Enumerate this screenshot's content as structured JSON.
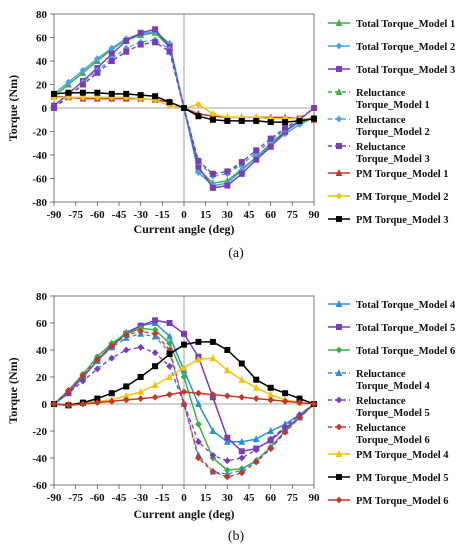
{
  "chart_data": [
    {
      "type": "line",
      "panel_label": "(a)",
      "xlabel": "Current angle (deg)",
      "ylabel": "Torque (Nm)",
      "xlim": [
        -90,
        90
      ],
      "ylim": [
        -80,
        80
      ],
      "x_ticks": [
        -90,
        -75,
        -60,
        -45,
        -30,
        -15,
        0,
        15,
        30,
        45,
        60,
        75,
        90
      ],
      "y_ticks": [
        -80,
        -60,
        -40,
        -20,
        0,
        20,
        40,
        60,
        80
      ],
      "grid": false,
      "legend_position": "right",
      "x": [
        -90,
        -80,
        -70,
        -60,
        -50,
        -40,
        -30,
        -20,
        -10,
        0,
        10,
        20,
        30,
        40,
        50,
        60,
        70,
        80,
        90
      ],
      "series": [
        {
          "name": "Total Torque_Model 1",
          "color": "#3fae49",
          "marker": "triangle",
          "dash": "solid",
          "values": [
            10,
            20,
            30,
            40,
            50,
            58,
            62,
            64,
            52,
            0,
            -52,
            -64,
            -62,
            -52,
            -42,
            -30,
            -20,
            -12,
            -8
          ]
        },
        {
          "name": "Total Torque_Model 2",
          "color": "#4aa3df",
          "marker": "diamond",
          "dash": "solid",
          "values": [
            12,
            22,
            32,
            42,
            51,
            59,
            63,
            65,
            55,
            0,
            -55,
            -66,
            -64,
            -53,
            -42,
            -32,
            -22,
            -14,
            -8
          ]
        },
        {
          "name": "Total Torque_Model 3",
          "color": "#7a3db8",
          "marker": "square",
          "dash": "solid",
          "values": [
            2,
            12,
            23,
            34,
            46,
            57,
            64,
            67,
            52,
            0,
            -50,
            -68,
            -66,
            -56,
            -44,
            -33,
            -20,
            -10,
            0
          ]
        },
        {
          "name": "Reluctance Torque_Model 1",
          "color": "#3fae49",
          "marker": "triangle",
          "dash": "dashed",
          "values": [
            0,
            10,
            20,
            30,
            40,
            48,
            54,
            56,
            48,
            0,
            -45,
            -56,
            -54,
            -48,
            -38,
            -28,
            -18,
            -10,
            0
          ]
        },
        {
          "name": "Reluctance Torque_Model 2",
          "color": "#4aa3df",
          "marker": "diamond",
          "dash": "dashed",
          "values": [
            0,
            12,
            22,
            32,
            42,
            51,
            56,
            58,
            50,
            0,
            -46,
            -58,
            -56,
            -48,
            -38,
            -28,
            -18,
            -10,
            0
          ]
        },
        {
          "name": "Reluctance Torque_Model 3",
          "color": "#7a3db8",
          "marker": "square",
          "dash": "dashed",
          "values": [
            0,
            10,
            20,
            30,
            40,
            48,
            54,
            56,
            48,
            0,
            -45,
            -56,
            -54,
            -46,
            -36,
            -26,
            -17,
            -9,
            0
          ]
        },
        {
          "name": "PM Torque_Model 1",
          "color": "#c0392b",
          "marker": "triangle",
          "dash": "solid",
          "values": [
            10,
            9,
            8,
            8,
            8,
            8,
            8,
            7,
            5,
            0,
            -5,
            -7,
            -8,
            -8,
            -8,
            -8,
            -8,
            -9,
            -10
          ]
        },
        {
          "name": "PM Torque_Model 2",
          "color": "#f1c40f",
          "marker": "diamond",
          "dash": "solid",
          "values": [
            9,
            9,
            9,
            9,
            9,
            9,
            8,
            7,
            2,
            0,
            3,
            -5,
            -8,
            -8,
            -8,
            -9,
            -9,
            -9,
            -9
          ]
        },
        {
          "name": "PM Torque_Model 3",
          "color": "#000000",
          "marker": "square",
          "dash": "solid",
          "values": [
            12,
            13,
            13,
            13,
            12,
            12,
            11,
            10,
            5,
            0,
            -7,
            -10,
            -11,
            -11,
            -11,
            -12,
            -12,
            -11,
            -9
          ]
        }
      ]
    },
    {
      "type": "line",
      "panel_label": "(b)",
      "xlabel": "Current angle (deg)",
      "ylabel": "Torque (Nm)",
      "xlim": [
        -90,
        90
      ],
      "ylim": [
        -60,
        80
      ],
      "x_ticks": [
        -90,
        -75,
        -60,
        -45,
        -30,
        -15,
        0,
        15,
        30,
        45,
        60,
        75,
        90
      ],
      "y_ticks": [
        -60,
        -40,
        -20,
        0,
        20,
        40,
        60,
        80
      ],
      "grid": false,
      "legend_position": "right",
      "x": [
        -90,
        -80,
        -70,
        -60,
        -50,
        -40,
        -30,
        -20,
        -10,
        0,
        10,
        20,
        30,
        40,
        50,
        60,
        70,
        80,
        90
      ],
      "series": [
        {
          "name": "Total Torque_Model 4",
          "color": "#2b8fd6",
          "marker": "triangle",
          "dash": "solid",
          "values": [
            0,
            10,
            20,
            32,
            44,
            53,
            58,
            60,
            50,
            25,
            0,
            -20,
            -28,
            -28,
            -26,
            -20,
            -15,
            -8,
            0
          ]
        },
        {
          "name": "Total Torque_Model 5",
          "color": "#7a3db8",
          "marker": "square",
          "dash": "solid",
          "values": [
            0,
            8,
            20,
            32,
            43,
            52,
            58,
            62,
            60,
            52,
            35,
            5,
            -25,
            -35,
            -33,
            -27,
            -18,
            -10,
            0
          ]
        },
        {
          "name": "Total Torque_Model 6",
          "color": "#3fae49",
          "marker": "diamond",
          "dash": "solid",
          "values": [
            0,
            10,
            22,
            35,
            45,
            52,
            56,
            55,
            45,
            20,
            -15,
            -40,
            -49,
            -48,
            -42,
            -32,
            -20,
            -10,
            0
          ]
        },
        {
          "name": "Reluctance Torque_Model 4",
          "color": "#2b8fd6",
          "marker": "triangle",
          "dash": "dashed",
          "values": [
            0,
            10,
            20,
            32,
            42,
            49,
            52,
            50,
            38,
            0,
            -38,
            -50,
            -52,
            -49,
            -42,
            -32,
            -20,
            -10,
            0
          ]
        },
        {
          "name": "Reluctance Torque_Model 5",
          "color": "#7a3db8",
          "marker": "diamond",
          "dash": "dashed",
          "values": [
            0,
            8,
            17,
            26,
            34,
            40,
            42,
            38,
            28,
            0,
            -28,
            -38,
            -42,
            -40,
            -34,
            -26,
            -17,
            -8,
            0
          ]
        },
        {
          "name": "Reluctance Torque_Model 6",
          "color": "#c0392b",
          "marker": "diamond",
          "dash": "dashed",
          "values": [
            0,
            10,
            21,
            33,
            43,
            51,
            54,
            52,
            40,
            0,
            -40,
            -50,
            -54,
            -51,
            -43,
            -33,
            -21,
            -10,
            0
          ]
        },
        {
          "name": "PM Torque_Model 4",
          "color": "#f1c40f",
          "marker": "triangle",
          "dash": "solid",
          "values": [
            0,
            0,
            1,
            2,
            3,
            6,
            9,
            14,
            20,
            27,
            33,
            34,
            25,
            18,
            12,
            7,
            3,
            1,
            0
          ]
        },
        {
          "name": "PM Torque_Model 5",
          "color": "#000000",
          "marker": "square",
          "dash": "solid",
          "values": [
            0,
            -1,
            1,
            4,
            8,
            13,
            20,
            28,
            37,
            44,
            46,
            46,
            40,
            30,
            18,
            12,
            8,
            4,
            0
          ]
        },
        {
          "name": "PM Torque_Model 6",
          "color": "#c0392b",
          "marker": "diamond",
          "dash": "solid",
          "values": [
            0,
            -1,
            0,
            1,
            2,
            3,
            4,
            5,
            7,
            9,
            8,
            7,
            6,
            5,
            4,
            3,
            2,
            1,
            0
          ]
        }
      ]
    }
  ]
}
